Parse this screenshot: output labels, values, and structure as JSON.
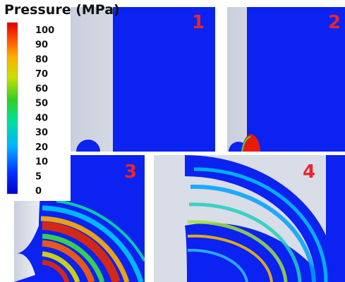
{
  "colorbar": {
    "title": "Pressure (MPa)",
    "labels": [
      100,
      90,
      80,
      70,
      60,
      50,
      40,
      30,
      20,
      10,
      5,
      0
    ]
  },
  "panels": [
    {
      "label": "1"
    },
    {
      "label": "2"
    },
    {
      "label": "3"
    },
    {
      "label": "4"
    }
  ]
}
